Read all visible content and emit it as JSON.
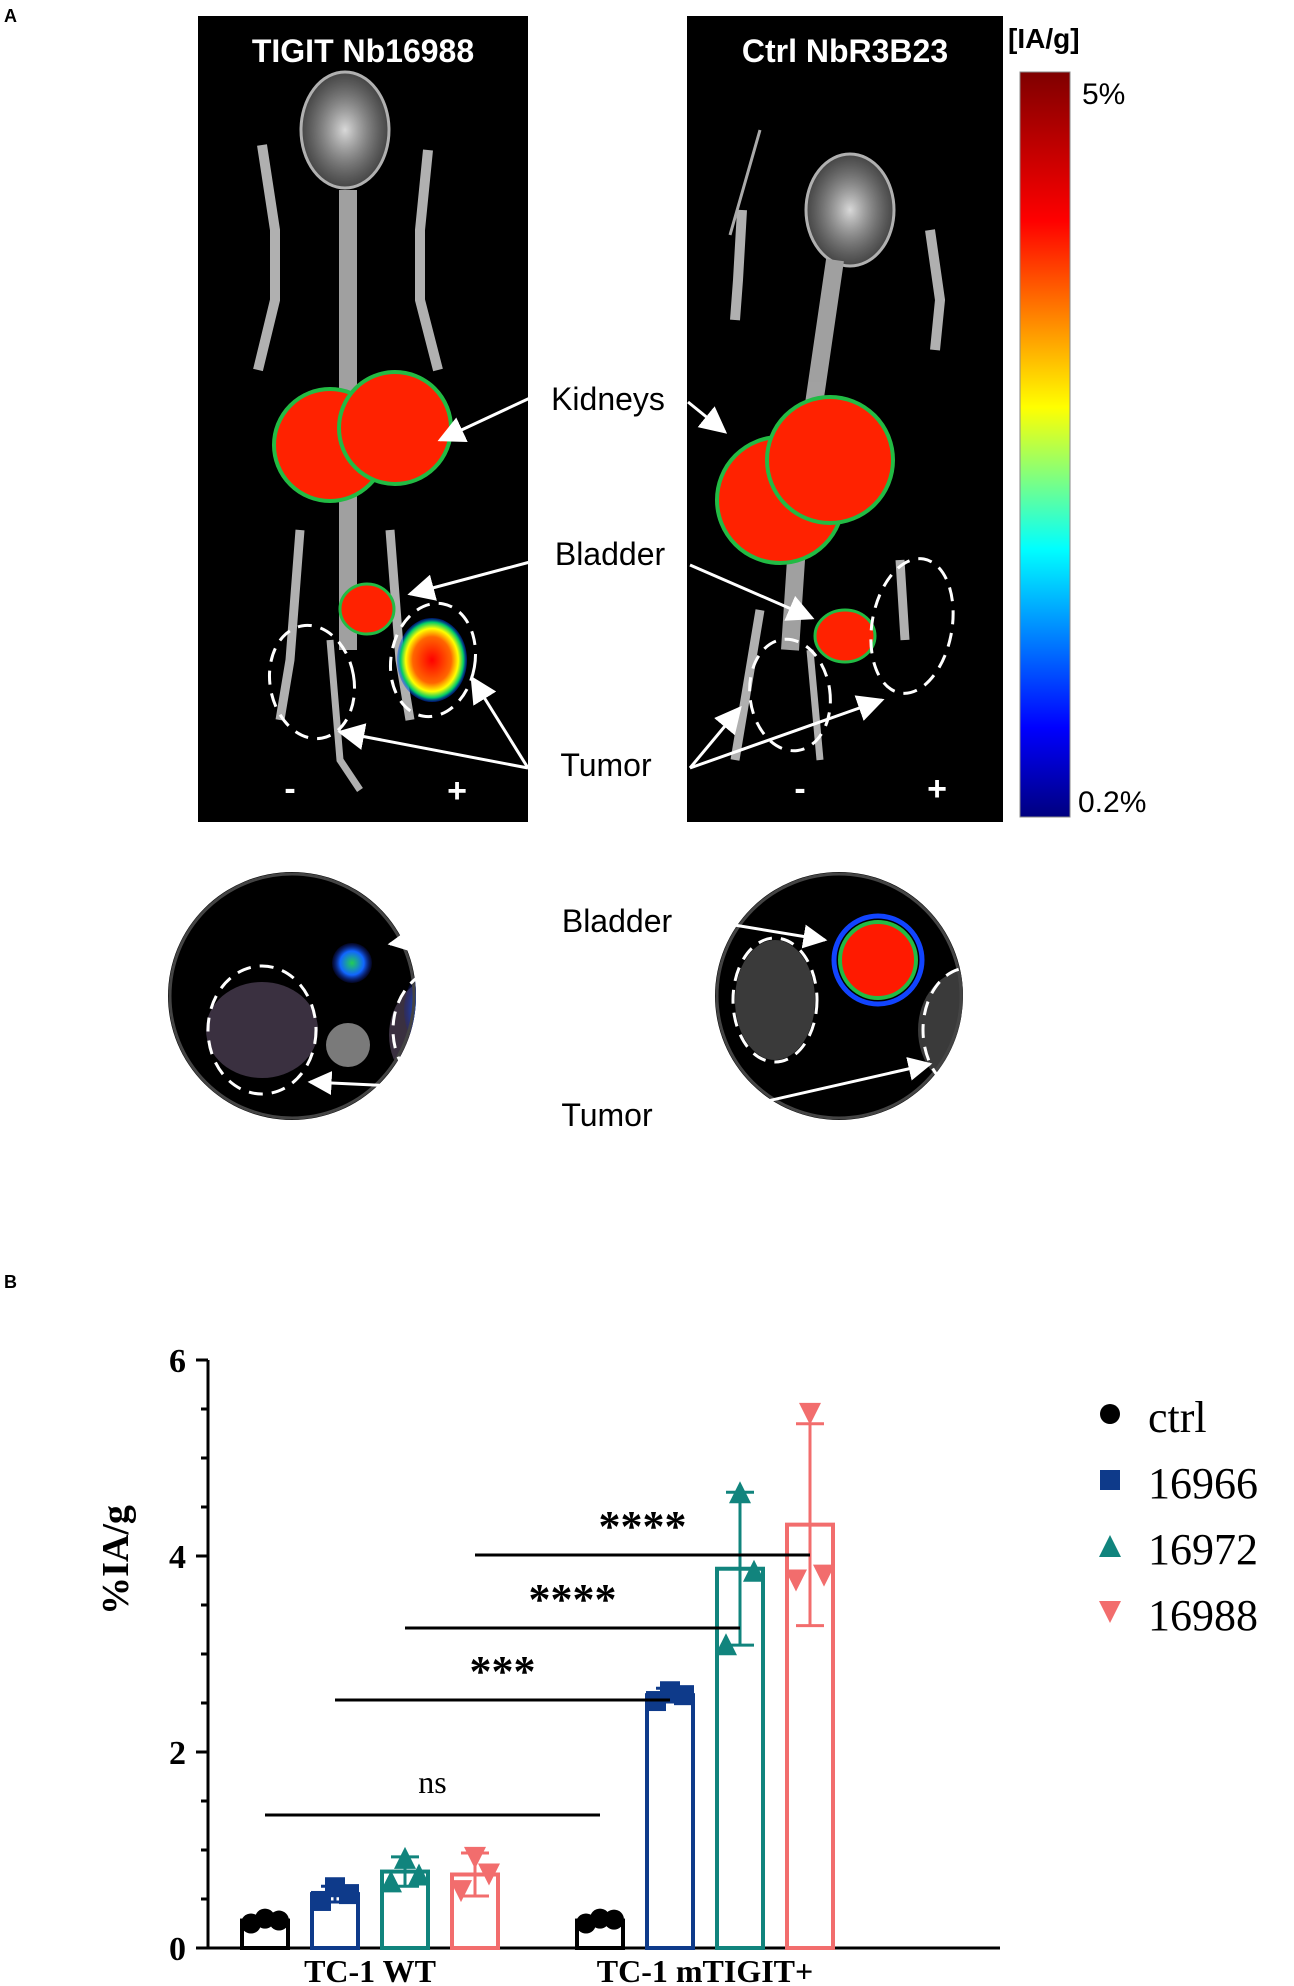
{
  "panel_a": {
    "label": "A",
    "left_title": "TIGIT Nb16988",
    "right_title": "Ctrl NbR3B23",
    "colorbar_unit": "[IA/g]",
    "colorbar_max": "5%",
    "colorbar_min": "0.2%",
    "annotations": {
      "kidneys": "Kidneys",
      "bladder": "Bladder",
      "tumor": "Tumor",
      "bladder_axial": "Bladder",
      "tumor_axial": "Tumor"
    },
    "signs": {
      "minus": "-",
      "plus": "+"
    },
    "colors": {
      "hot": "#ff2200",
      "colormap": [
        "#00007f",
        "#0000ff",
        "#00ffff",
        "#ffff00",
        "#ff0000",
        "#7f0000"
      ]
    }
  },
  "panel_b": {
    "label": "B"
  },
  "chart_data": {
    "type": "bar",
    "ylabel": "%IA/g",
    "xlabel": "",
    "ylim": [
      0,
      6
    ],
    "yticks": [
      "0",
      "2",
      "4",
      "6"
    ],
    "groups": [
      "TC-1 WT",
      "TC-1 mTIGIT+"
    ],
    "series": [
      {
        "name": "ctrl",
        "color": "#000000",
        "marker": "circle",
        "means": [
          0.28,
          0.28
        ],
        "errors": [
          0.03,
          0.03
        ],
        "points": [
          [
            0.25,
            0.28,
            0.3
          ],
          [
            0.25,
            0.29,
            0.3
          ]
        ]
      },
      {
        "name": "16966",
        "color": "#0e3a8a",
        "marker": "square",
        "means": [
          0.55,
          2.58
        ],
        "errors": [
          0.08,
          0.07
        ],
        "points": [
          [
            0.48,
            0.55,
            0.62
          ],
          [
            2.52,
            2.58,
            2.62
          ]
        ]
      },
      {
        "name": "16972",
        "color": "#11847d",
        "marker": "triangle-up",
        "means": [
          0.78,
          3.87
        ],
        "errors": [
          0.15,
          0.78
        ],
        "points": [
          [
            0.68,
            0.75,
            0.92
          ],
          [
            3.1,
            3.85,
            4.65
          ]
        ]
      },
      {
        "name": "16988",
        "color": "#f26d6d",
        "marker": "triangle-down",
        "means": [
          0.75,
          4.32
        ],
        "errors": [
          0.22,
          1.03
        ],
        "points": [
          [
            0.58,
            0.75,
            0.92
          ],
          [
            3.75,
            3.8,
            5.45
          ]
        ]
      }
    ],
    "significance": [
      {
        "label": "ns",
        "from": [
          0,
          "ctrl"
        ],
        "to": [
          1,
          "ctrl"
        ]
      },
      {
        "label": "***",
        "from": [
          0,
          "16966"
        ],
        "to": [
          1,
          "16966"
        ]
      },
      {
        "label": "****",
        "from": [
          0,
          "16972"
        ],
        "to": [
          1,
          "16972"
        ]
      },
      {
        "label": "****",
        "from": [
          0,
          "16988"
        ],
        "to": [
          1,
          "16988"
        ]
      }
    ],
    "legend_position": "right"
  }
}
